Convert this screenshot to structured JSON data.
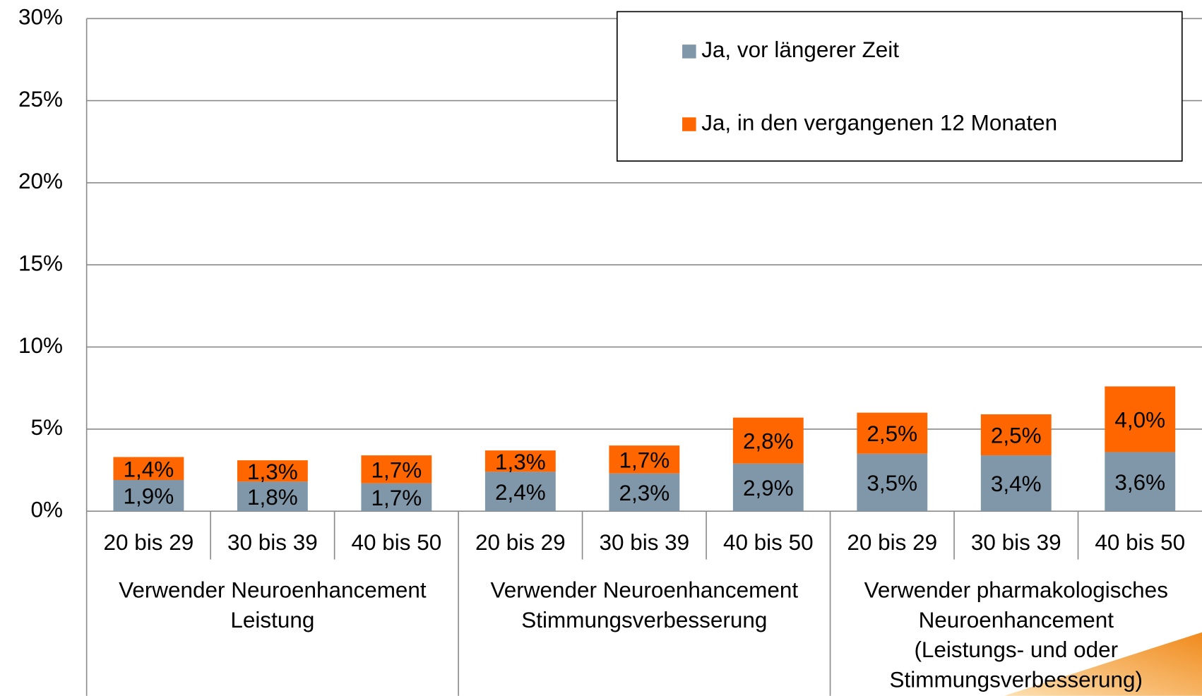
{
  "chart_data": {
    "type": "stacked_bar",
    "categories": [
      "20 bis 29",
      "30 bis 39",
      "40 bis 50",
      "20 bis 29",
      "30 bis 39",
      "40 bis 50",
      "20 bis 29",
      "30 bis 39",
      "40 bis 50"
    ],
    "groups": [
      [
        "Verwender Neuroenhancement",
        "Leistung"
      ],
      [
        "Verwender Neuroenhancement",
        "Stimmungsverbesserung"
      ],
      [
        "Verwender pharmakologisches",
        "Neuroenhancement",
        "(Leistungs- und oder",
        "Stimmungsverbesserung)"
      ]
    ],
    "series": [
      {
        "name": "Ja, vor längerer Zeit",
        "color": "#7f97a8",
        "values": [
          1.9,
          1.8,
          1.7,
          2.4,
          2.3,
          2.9,
          3.5,
          3.4,
          3.6
        ],
        "value_labels": [
          "1,9%",
          "1,8%",
          "1,7%",
          "2,4%",
          "2,3%",
          "2,9%",
          "3,5%",
          "3,4%",
          "3,6%"
        ]
      },
      {
        "name": "Ja, in den vergangenen 12 Monaten",
        "color": "#ff6600",
        "values": [
          1.4,
          1.3,
          1.7,
          1.3,
          1.7,
          2.8,
          2.5,
          2.5,
          4.0
        ],
        "value_labels": [
          "1,4%",
          "1,3%",
          "1,7%",
          "1,3%",
          "1,7%",
          "2,8%",
          "2,5%",
          "2,5%",
          "4,0%"
        ]
      }
    ],
    "ylim": [
      0,
      30
    ],
    "yticks": [
      {
        "value": 0,
        "label": "0%"
      },
      {
        "value": 5,
        "label": "5%"
      },
      {
        "value": 10,
        "label": "10%"
      },
      {
        "value": 15,
        "label": "15%"
      },
      {
        "value": 20,
        "label": "20%"
      },
      {
        "value": 25,
        "label": "25%"
      },
      {
        "value": 30,
        "label": "30%"
      }
    ],
    "grid": true,
    "legend": "top-right"
  }
}
